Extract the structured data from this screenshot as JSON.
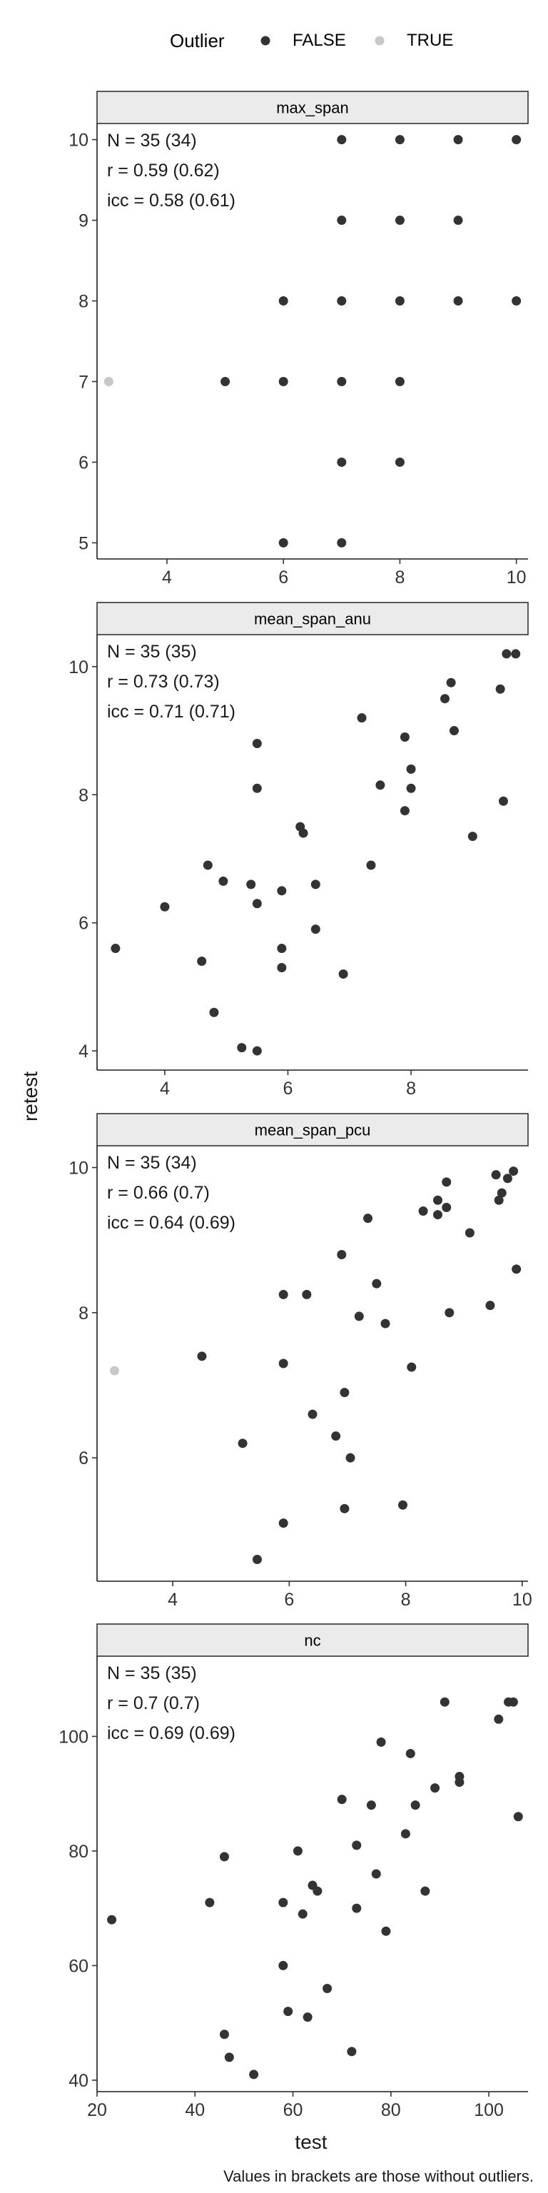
{
  "legend": {
    "title": "Outlier",
    "entries": [
      {
        "label": "FALSE",
        "color": "#333333"
      },
      {
        "label": "TRUE",
        "color": "#c8c8c8"
      }
    ]
  },
  "axis_titles": {
    "x": "test",
    "y": "retest"
  },
  "caption": "Values in brackets are those without outliers.",
  "colors": {
    "normal": "#333333",
    "outlier": "#c8c8c8",
    "strip_fill": "#ebebeb"
  },
  "chart_data": [
    {
      "type": "scatter",
      "panel": "max_span",
      "stats": [
        "N = 35 (34)",
        "r = 0.59 (0.62)",
        "icc = 0.58 (0.61)"
      ],
      "xlim": [
        2.8,
        10.2
      ],
      "ylim": [
        4.8,
        10.2
      ],
      "xticks": [
        4,
        6,
        8,
        10
      ],
      "yticks": [
        5,
        6,
        7,
        8,
        9,
        10
      ],
      "points": [
        {
          "x": 3,
          "y": 7,
          "outlier": true
        },
        {
          "x": 5,
          "y": 7,
          "outlier": false
        },
        {
          "x": 6,
          "y": 8,
          "outlier": false
        },
        {
          "x": 6,
          "y": 7,
          "outlier": false
        },
        {
          "x": 6,
          "y": 5,
          "outlier": false
        },
        {
          "x": 7,
          "y": 10,
          "outlier": false
        },
        {
          "x": 7,
          "y": 9,
          "outlier": false
        },
        {
          "x": 7,
          "y": 8,
          "outlier": false
        },
        {
          "x": 7,
          "y": 7,
          "outlier": false
        },
        {
          "x": 7,
          "y": 6,
          "outlier": false
        },
        {
          "x": 7,
          "y": 5,
          "outlier": false
        },
        {
          "x": 8,
          "y": 10,
          "outlier": false
        },
        {
          "x": 8,
          "y": 9,
          "outlier": false
        },
        {
          "x": 8,
          "y": 8,
          "outlier": false
        },
        {
          "x": 8,
          "y": 7,
          "outlier": false
        },
        {
          "x": 8,
          "y": 6,
          "outlier": false
        },
        {
          "x": 9,
          "y": 10,
          "outlier": false
        },
        {
          "x": 9,
          "y": 9,
          "outlier": false
        },
        {
          "x": 9,
          "y": 8,
          "outlier": false
        },
        {
          "x": 10,
          "y": 10,
          "outlier": false
        },
        {
          "x": 10,
          "y": 8,
          "outlier": false
        }
      ]
    },
    {
      "type": "scatter",
      "panel": "mean_span_anu",
      "stats": [
        "N = 35 (35)",
        "r = 0.73 (0.73)",
        "icc = 0.71 (0.71)"
      ],
      "xlim": [
        2.9,
        9.9
      ],
      "ylim": [
        3.7,
        10.5
      ],
      "xticks": [
        4,
        6,
        8
      ],
      "yticks": [
        4,
        6,
        8,
        10
      ],
      "points": [
        {
          "x": 3.2,
          "y": 5.6,
          "outlier": false
        },
        {
          "x": 4.0,
          "y": 6.25,
          "outlier": false
        },
        {
          "x": 4.6,
          "y": 5.4,
          "outlier": false
        },
        {
          "x": 4.7,
          "y": 6.9,
          "outlier": false
        },
        {
          "x": 4.8,
          "y": 4.6,
          "outlier": false
        },
        {
          "x": 4.95,
          "y": 6.65,
          "outlier": false
        },
        {
          "x": 5.25,
          "y": 4.05,
          "outlier": false
        },
        {
          "x": 5.4,
          "y": 6.6,
          "outlier": false
        },
        {
          "x": 5.5,
          "y": 4.0,
          "outlier": false
        },
        {
          "x": 5.5,
          "y": 6.3,
          "outlier": false
        },
        {
          "x": 5.5,
          "y": 8.1,
          "outlier": false
        },
        {
          "x": 5.5,
          "y": 8.8,
          "outlier": false
        },
        {
          "x": 5.9,
          "y": 6.5,
          "outlier": false
        },
        {
          "x": 5.9,
          "y": 5.6,
          "outlier": false
        },
        {
          "x": 5.9,
          "y": 5.3,
          "outlier": false
        },
        {
          "x": 6.2,
          "y": 7.5,
          "outlier": false
        },
        {
          "x": 6.25,
          "y": 7.4,
          "outlier": false
        },
        {
          "x": 6.45,
          "y": 6.6,
          "outlier": false
        },
        {
          "x": 6.45,
          "y": 5.9,
          "outlier": false
        },
        {
          "x": 6.9,
          "y": 5.2,
          "outlier": false
        },
        {
          "x": 7.2,
          "y": 9.2,
          "outlier": false
        },
        {
          "x": 7.35,
          "y": 6.9,
          "outlier": false
        },
        {
          "x": 7.5,
          "y": 8.15,
          "outlier": false
        },
        {
          "x": 7.9,
          "y": 8.9,
          "outlier": false
        },
        {
          "x": 7.9,
          "y": 7.75,
          "outlier": false
        },
        {
          "x": 8.0,
          "y": 8.4,
          "outlier": false
        },
        {
          "x": 8.0,
          "y": 8.1,
          "outlier": false
        },
        {
          "x": 8.55,
          "y": 9.5,
          "outlier": false
        },
        {
          "x": 8.65,
          "y": 9.75,
          "outlier": false
        },
        {
          "x": 8.7,
          "y": 9.0,
          "outlier": false
        },
        {
          "x": 9.0,
          "y": 7.35,
          "outlier": false
        },
        {
          "x": 9.45,
          "y": 9.65,
          "outlier": false
        },
        {
          "x": 9.5,
          "y": 7.9,
          "outlier": false
        },
        {
          "x": 9.55,
          "y": 10.2,
          "outlier": false
        },
        {
          "x": 9.7,
          "y": 10.2,
          "outlier": false
        }
      ]
    },
    {
      "type": "scatter",
      "panel": "mean_span_pcu",
      "stats": [
        "N = 35 (34)",
        "r = 0.66 (0.7)",
        "icc = 0.64 (0.69)"
      ],
      "xlim": [
        2.7,
        10.1
      ],
      "ylim": [
        4.3,
        10.3
      ],
      "xticks": [
        4,
        6,
        8,
        10
      ],
      "yticks": [
        6,
        8,
        10
      ],
      "points": [
        {
          "x": 3.0,
          "y": 7.2,
          "outlier": true
        },
        {
          "x": 4.5,
          "y": 7.4,
          "outlier": false
        },
        {
          "x": 5.2,
          "y": 6.2,
          "outlier": false
        },
        {
          "x": 5.45,
          "y": 4.6,
          "outlier": false
        },
        {
          "x": 5.9,
          "y": 8.25,
          "outlier": false
        },
        {
          "x": 5.9,
          "y": 7.3,
          "outlier": false
        },
        {
          "x": 5.9,
          "y": 5.1,
          "outlier": false
        },
        {
          "x": 6.3,
          "y": 8.25,
          "outlier": false
        },
        {
          "x": 6.4,
          "y": 6.6,
          "outlier": false
        },
        {
          "x": 6.8,
          "y": 6.3,
          "outlier": false
        },
        {
          "x": 6.9,
          "y": 8.8,
          "outlier": false
        },
        {
          "x": 6.95,
          "y": 6.9,
          "outlier": false
        },
        {
          "x": 6.95,
          "y": 5.3,
          "outlier": false
        },
        {
          "x": 7.05,
          "y": 6.0,
          "outlier": false
        },
        {
          "x": 7.2,
          "y": 7.95,
          "outlier": false
        },
        {
          "x": 7.35,
          "y": 9.3,
          "outlier": false
        },
        {
          "x": 7.5,
          "y": 8.4,
          "outlier": false
        },
        {
          "x": 7.65,
          "y": 7.85,
          "outlier": false
        },
        {
          "x": 7.95,
          "y": 5.35,
          "outlier": false
        },
        {
          "x": 8.1,
          "y": 7.25,
          "outlier": false
        },
        {
          "x": 8.3,
          "y": 9.4,
          "outlier": false
        },
        {
          "x": 8.55,
          "y": 9.35,
          "outlier": false
        },
        {
          "x": 8.55,
          "y": 9.55,
          "outlier": false
        },
        {
          "x": 8.7,
          "y": 9.8,
          "outlier": false
        },
        {
          "x": 8.7,
          "y": 9.45,
          "outlier": false
        },
        {
          "x": 8.75,
          "y": 8.0,
          "outlier": false
        },
        {
          "x": 9.1,
          "y": 9.1,
          "outlier": false
        },
        {
          "x": 9.45,
          "y": 8.1,
          "outlier": false
        },
        {
          "x": 9.55,
          "y": 9.9,
          "outlier": false
        },
        {
          "x": 9.6,
          "y": 9.55,
          "outlier": false
        },
        {
          "x": 9.65,
          "y": 9.65,
          "outlier": false
        },
        {
          "x": 9.75,
          "y": 9.85,
          "outlier": false
        },
        {
          "x": 9.85,
          "y": 9.95,
          "outlier": false
        },
        {
          "x": 9.9,
          "y": 8.6,
          "outlier": false
        }
      ]
    },
    {
      "type": "scatter",
      "panel": "nc",
      "stats": [
        "N = 35 (35)",
        "r = 0.7 (0.7)",
        "icc = 0.69 (0.69)"
      ],
      "xlim": [
        20,
        108
      ],
      "ylim": [
        38,
        114
      ],
      "xticks": [
        20,
        40,
        60,
        80,
        100
      ],
      "yticks": [
        40,
        60,
        80,
        100
      ],
      "points": [
        {
          "x": 23,
          "y": 68,
          "outlier": false
        },
        {
          "x": 43,
          "y": 71,
          "outlier": false
        },
        {
          "x": 46,
          "y": 79,
          "outlier": false
        },
        {
          "x": 46,
          "y": 48,
          "outlier": false
        },
        {
          "x": 47,
          "y": 44,
          "outlier": false
        },
        {
          "x": 52,
          "y": 41,
          "outlier": false
        },
        {
          "x": 58,
          "y": 60,
          "outlier": false
        },
        {
          "x": 58,
          "y": 71,
          "outlier": false
        },
        {
          "x": 59,
          "y": 52,
          "outlier": false
        },
        {
          "x": 61,
          "y": 80,
          "outlier": false
        },
        {
          "x": 62,
          "y": 69,
          "outlier": false
        },
        {
          "x": 63,
          "y": 51,
          "outlier": false
        },
        {
          "x": 64,
          "y": 74,
          "outlier": false
        },
        {
          "x": 65,
          "y": 73,
          "outlier": false
        },
        {
          "x": 67,
          "y": 56,
          "outlier": false
        },
        {
          "x": 70,
          "y": 89,
          "outlier": false
        },
        {
          "x": 72,
          "y": 45,
          "outlier": false
        },
        {
          "x": 73,
          "y": 81,
          "outlier": false
        },
        {
          "x": 73,
          "y": 70,
          "outlier": false
        },
        {
          "x": 76,
          "y": 88,
          "outlier": false
        },
        {
          "x": 77,
          "y": 76,
          "outlier": false
        },
        {
          "x": 78,
          "y": 99,
          "outlier": false
        },
        {
          "x": 79,
          "y": 66,
          "outlier": false
        },
        {
          "x": 83,
          "y": 83,
          "outlier": false
        },
        {
          "x": 84,
          "y": 97,
          "outlier": false
        },
        {
          "x": 85,
          "y": 88,
          "outlier": false
        },
        {
          "x": 87,
          "y": 73,
          "outlier": false
        },
        {
          "x": 89,
          "y": 91,
          "outlier": false
        },
        {
          "x": 91,
          "y": 106,
          "outlier": false
        },
        {
          "x": 94,
          "y": 92,
          "outlier": false
        },
        {
          "x": 94,
          "y": 93,
          "outlier": false
        },
        {
          "x": 102,
          "y": 103,
          "outlier": false
        },
        {
          "x": 104,
          "y": 106,
          "outlier": false
        },
        {
          "x": 105,
          "y": 106,
          "outlier": false
        },
        {
          "x": 106,
          "y": 86,
          "outlier": false
        }
      ]
    }
  ]
}
